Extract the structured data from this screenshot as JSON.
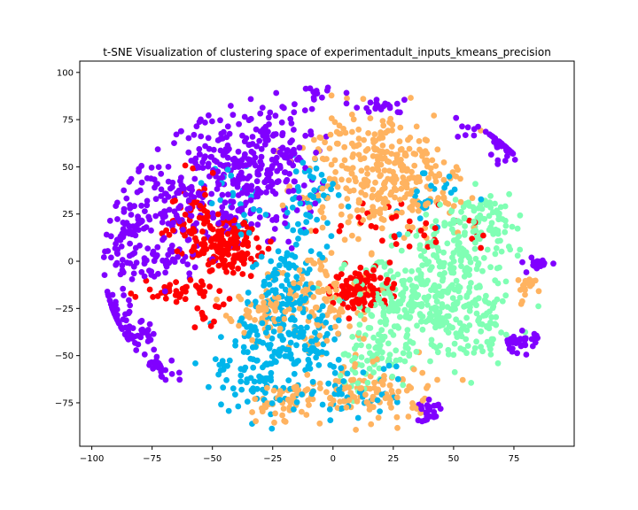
{
  "chart_data": {
    "type": "scatter",
    "title": "t-SNE Visualization of clustering space of experimentadult_inputs_kmeans_precision",
    "xlabel": "",
    "ylabel": "",
    "xlim": [
      -105,
      100
    ],
    "ylim": [
      -98,
      106
    ],
    "xticks": [
      -100,
      -75,
      -50,
      -25,
      0,
      25,
      50,
      75
    ],
    "yticks": [
      -75,
      -50,
      -25,
      0,
      25,
      50,
      75,
      100
    ],
    "grid": false,
    "legend": "none",
    "cluster_colors": [
      "#8000ff",
      "#00b5eb",
      "#80ffb4",
      "#ffb360",
      "#ff0000"
    ],
    "clusters": [
      {
        "color_index": 0,
        "regions": [
          {
            "cx": -40,
            "cy": 45,
            "sx": 14,
            "sy": 18,
            "n": 260
          },
          {
            "cx": -25,
            "cy": 55,
            "sx": 8,
            "sy": 12,
            "n": 90
          },
          {
            "cx": -70,
            "cy": 30,
            "sx": 10,
            "sy": 12,
            "n": 80
          },
          {
            "cx": -85,
            "cy": 20,
            "sx": 6,
            "sy": 12,
            "n": 50
          },
          {
            "cx": -75,
            "cy": 0,
            "sx": 10,
            "sy": 6,
            "n": 70
          },
          {
            "cx": -92,
            "cy": -27,
            "sx": 5,
            "sy": 5,
            "n": 40
          },
          {
            "cx": -82,
            "cy": -40,
            "sx": 5,
            "sy": 4,
            "n": 35
          },
          {
            "cx": -72,
            "cy": -58,
            "sx": 4,
            "sy": 4,
            "n": 25
          },
          {
            "cx": 70,
            "cy": 61,
            "sx": 4,
            "sy": 4,
            "n": 40
          },
          {
            "cx": 78,
            "cy": -43,
            "sx": 4,
            "sy": 3,
            "n": 35
          },
          {
            "cx": 85,
            "cy": -1,
            "sx": 3,
            "sy": 2,
            "n": 18
          },
          {
            "cx": 40,
            "cy": -80,
            "sx": 2.5,
            "sy": 3,
            "n": 25
          },
          {
            "cx": 20,
            "cy": 82,
            "sx": 6,
            "sy": 2,
            "n": 20
          },
          {
            "cx": -5,
            "cy": 88,
            "sx": 5,
            "sy": 4,
            "n": 12
          },
          {
            "cx": 55,
            "cy": 70,
            "sx": 4,
            "sy": 4,
            "n": 8
          }
        ]
      },
      {
        "color_index": 1,
        "regions": [
          {
            "cx": -20,
            "cy": -15,
            "sx": 7,
            "sy": 14,
            "n": 110
          },
          {
            "cx": -30,
            "cy": -55,
            "sx": 10,
            "sy": 14,
            "n": 120
          },
          {
            "cx": -10,
            "cy": -45,
            "sx": 8,
            "sy": 12,
            "n": 80
          },
          {
            "cx": -10,
            "cy": 30,
            "sx": 6,
            "sy": 14,
            "n": 60
          },
          {
            "cx": 10,
            "cy": -70,
            "sx": 10,
            "sy": 8,
            "n": 40
          },
          {
            "cx": 40,
            "cy": 30,
            "sx": 6,
            "sy": 8,
            "n": 25
          },
          {
            "cx": -42,
            "cy": 35,
            "sx": 5,
            "sy": 10,
            "n": 25
          }
        ]
      },
      {
        "color_index": 2,
        "regions": [
          {
            "cx": 35,
            "cy": -25,
            "sx": 14,
            "sy": 14,
            "n": 260
          },
          {
            "cx": 55,
            "cy": 10,
            "sx": 10,
            "sy": 12,
            "n": 120
          },
          {
            "cx": 60,
            "cy": -35,
            "sx": 8,
            "sy": 10,
            "n": 80
          },
          {
            "cx": 15,
            "cy": -50,
            "sx": 8,
            "sy": 10,
            "n": 60
          },
          {
            "cx": 65,
            "cy": 25,
            "sx": 6,
            "sy": 6,
            "n": 40
          }
        ]
      },
      {
        "color_index": 3,
        "regions": [
          {
            "cx": 15,
            "cy": 50,
            "sx": 14,
            "sy": 16,
            "n": 260
          },
          {
            "cx": 0,
            "cy": -20,
            "sx": 8,
            "sy": 18,
            "n": 90
          },
          {
            "cx": -25,
            "cy": -25,
            "sx": 10,
            "sy": 8,
            "n": 80
          },
          {
            "cx": 15,
            "cy": -70,
            "sx": 14,
            "sy": 8,
            "n": 110
          },
          {
            "cx": -20,
            "cy": -75,
            "sx": 8,
            "sy": 6,
            "n": 50
          },
          {
            "cx": 40,
            "cy": 40,
            "sx": 8,
            "sy": 10,
            "n": 60
          },
          {
            "cx": 80,
            "cy": -15,
            "sx": 4,
            "sy": 4,
            "n": 18
          }
        ]
      },
      {
        "color_index": 4,
        "regions": [
          {
            "cx": -45,
            "cy": 8,
            "sx": 7,
            "sy": 7,
            "n": 160
          },
          {
            "cx": -60,
            "cy": 25,
            "sx": 5,
            "sy": 10,
            "n": 50
          },
          {
            "cx": 12,
            "cy": -15,
            "sx": 6,
            "sy": 6,
            "n": 110
          },
          {
            "cx": -65,
            "cy": -15,
            "sx": 8,
            "sy": 3,
            "n": 35
          },
          {
            "cx": -50,
            "cy": -25,
            "sx": 5,
            "sy": 8,
            "n": 15
          },
          {
            "cx": 20,
            "cy": 20,
            "sx": 10,
            "sy": 6,
            "n": 20
          },
          {
            "cx": 45,
            "cy": 15,
            "sx": 10,
            "sy": 6,
            "n": 15
          }
        ]
      }
    ]
  }
}
